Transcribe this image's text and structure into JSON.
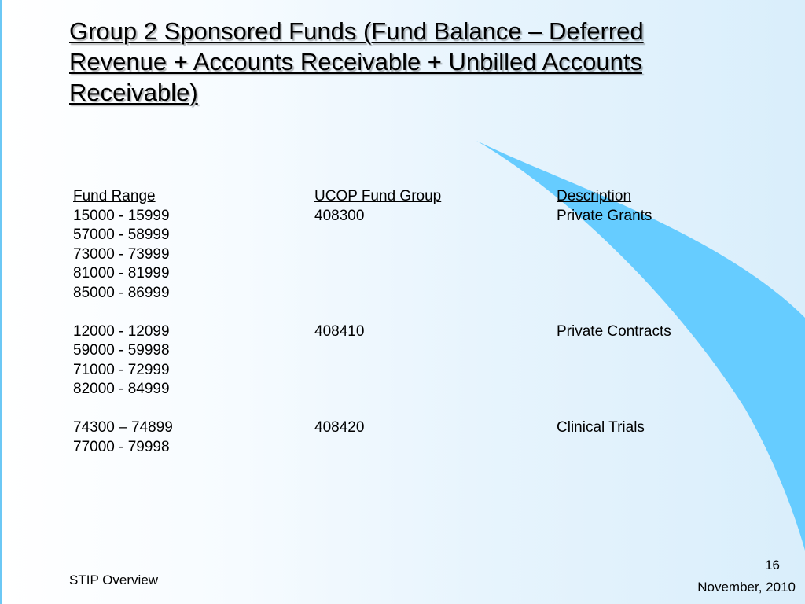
{
  "slide": {
    "title": "Group 2 Sponsored Funds (Fund Balance – Deferred Revenue + Accounts Receivable + Unbilled Accounts Receivable)",
    "headers": {
      "fund_range": "Fund Range",
      "ucop_fund_group": "UCOP Fund Group",
      "description": "Description"
    },
    "groups": [
      {
        "ranges": [
          "15000 - 15999",
          "57000 - 58999",
          "73000 - 73999",
          "81000 - 81999",
          "85000 - 86999"
        ],
        "ucop_fund_group": "408300",
        "description": "Private Grants"
      },
      {
        "ranges": [
          "12000 - 12099",
          "59000 - 59998",
          "71000 - 72999",
          "82000 - 84999"
        ],
        "ucop_fund_group": "408410",
        "description": "Private Contracts"
      },
      {
        "ranges": [
          "74300 – 74899",
          "77000 - 79998"
        ],
        "ucop_fund_group": "408420",
        "description": "Clinical Trials"
      }
    ],
    "footer": {
      "left": "STIP Overview",
      "slide_number": "16",
      "date": "November, 2010"
    },
    "colors": {
      "swoosh": "#66ccff",
      "left_rule": "#6cc8f5"
    }
  }
}
